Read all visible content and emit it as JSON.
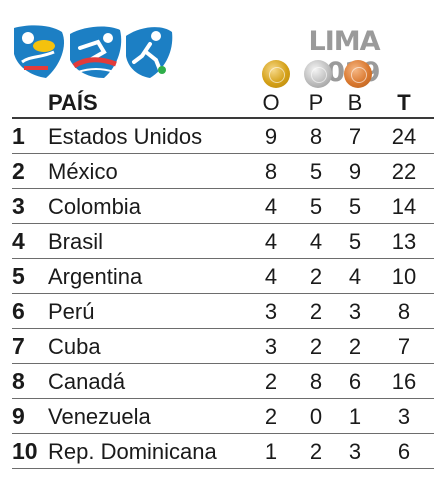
{
  "event": "LIMA 2019",
  "icons": [
    "swimming-icon",
    "cycling-icon",
    "soccer-icon"
  ],
  "medal_colors": {
    "gold": "#d4a017",
    "silver": "#bdbdbd",
    "bronze": "#d9782f"
  },
  "headers": {
    "country": "PAÍS",
    "gold": "O",
    "silver": "P",
    "bronze": "B",
    "total": "T"
  },
  "rows": [
    {
      "rank": "1",
      "country": "Estados Unidos",
      "gold": "9",
      "silver": "8",
      "bronze": "7",
      "total": "24"
    },
    {
      "rank": "2",
      "country": "México",
      "gold": "8",
      "silver": "5",
      "bronze": "9",
      "total": "22"
    },
    {
      "rank": "3",
      "country": "Colombia",
      "gold": "4",
      "silver": "5",
      "bronze": "5",
      "total": "14"
    },
    {
      "rank": "4",
      "country": "Brasil",
      "gold": "4",
      "silver": "4",
      "bronze": "5",
      "total": "13"
    },
    {
      "rank": "5",
      "country": "Argentina",
      "gold": "4",
      "silver": "2",
      "bronze": "4",
      "total": "10"
    },
    {
      "rank": "6",
      "country": "Perú",
      "gold": "3",
      "silver": "2",
      "bronze": "3",
      "total": "8"
    },
    {
      "rank": "7",
      "country": "Cuba",
      "gold": "3",
      "silver": "2",
      "bronze": "2",
      "total": "7"
    },
    {
      "rank": "8",
      "country": "Canadá",
      "gold": "2",
      "silver": "8",
      "bronze": "6",
      "total": "16"
    },
    {
      "rank": "9",
      "country": "Venezuela",
      "gold": "2",
      "silver": "0",
      "bronze": "1",
      "total": "3"
    },
    {
      "rank": "10",
      "country": "Rep. Dominicana",
      "gold": "1",
      "silver": "2",
      "bronze": "3",
      "total": "6"
    }
  ]
}
